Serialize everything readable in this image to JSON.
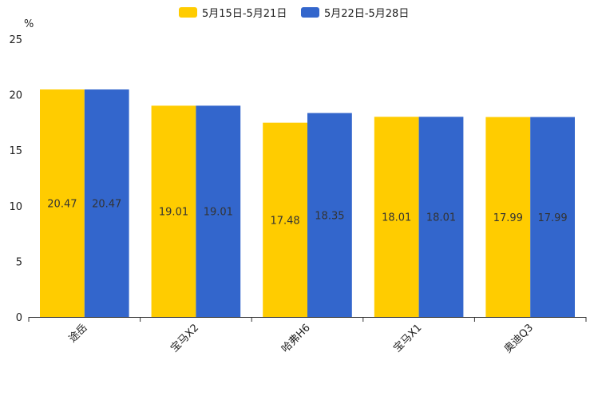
{
  "chart_data": {
    "type": "bar",
    "title": "",
    "xlabel": "",
    "ylabel": "%",
    "ylim": [
      0,
      25
    ],
    "yticks": [
      0,
      5,
      10,
      15,
      20,
      25
    ],
    "categories": [
      "途岳",
      "宝马X2",
      "哈弗H6",
      "宝马X1",
      "奥迪Q3"
    ],
    "series": [
      {
        "name": "5月15日-5月21日",
        "color": "#FFCC00",
        "values": [
          20.47,
          19.01,
          17.48,
          18.01,
          17.99
        ]
      },
      {
        "name": "5月22日-5月28日",
        "color": "#3366CC",
        "values": [
          20.47,
          19.01,
          18.35,
          18.01,
          17.99
        ]
      }
    ],
    "legend_position": "top-center",
    "grid": false
  }
}
